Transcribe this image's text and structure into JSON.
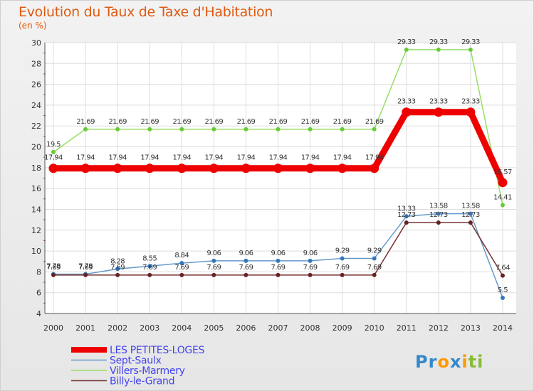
{
  "chart_data": {
    "type": "line",
    "title": "Evolution du Taux de Taxe d'Habitation",
    "ylabel": "(en %)",
    "xlabel": "",
    "ylim": [
      4,
      30
    ],
    "yticks": [
      4,
      6,
      8,
      10,
      12,
      14,
      16,
      18,
      20,
      22,
      24,
      26,
      28,
      30
    ],
    "categories": [
      "2000",
      "2001",
      "2002",
      "2003",
      "2004",
      "2005",
      "2006",
      "2007",
      "2008",
      "2009",
      "2010",
      "2011",
      "2012",
      "2013",
      "2014"
    ],
    "series": [
      {
        "name": "LES PETITES-LOGES",
        "color": "#ee0000",
        "thick": true,
        "values": [
          17.94,
          17.94,
          17.94,
          17.94,
          17.94,
          17.94,
          17.94,
          17.94,
          17.94,
          17.94,
          17.94,
          23.33,
          23.33,
          23.33,
          16.57
        ],
        "labels": [
          "17.94",
          "17.94",
          "17.94",
          "17.94",
          "17.94",
          "17.94",
          "17.94",
          "17.94",
          "17.94",
          "17.94",
          "17.94",
          "23.33",
          "23.33",
          "23.33",
          "16.57"
        ]
      },
      {
        "name": "Sept-Saulx",
        "color": "#6699cc",
        "marker": "#3377bb",
        "values": [
          7.78,
          7.78,
          8.28,
          8.55,
          8.84,
          9.06,
          9.06,
          9.06,
          9.06,
          9.29,
          9.29,
          13.33,
          13.58,
          13.58,
          5.5
        ],
        "labels": [
          "7.78",
          "7.78",
          "8.28",
          "8.55",
          "8.84",
          "9.06",
          "9.06",
          "9.06",
          "9.06",
          "9.29",
          "9.29",
          "13.33",
          "13.58",
          "13.58",
          "5.5"
        ]
      },
      {
        "name": "Villers-Marmery",
        "color": "#99dd66",
        "marker": "#66cc33",
        "values": [
          19.5,
          21.69,
          21.69,
          21.69,
          21.69,
          21.69,
          21.69,
          21.69,
          21.69,
          21.69,
          21.69,
          29.33,
          29.33,
          29.33,
          14.41
        ],
        "labels": [
          "19.5",
          "21.69",
          "21.69",
          "21.69",
          "21.69",
          "21.69",
          "21.69",
          "21.69",
          "21.69",
          "21.69",
          "21.69",
          "29.33",
          "29.33",
          "29.33",
          "14.41"
        ]
      },
      {
        "name": "Billy-le-Grand",
        "color": "#773333",
        "marker": "#662222",
        "values": [
          7.69,
          7.69,
          7.69,
          7.69,
          7.69,
          7.69,
          7.69,
          7.69,
          7.69,
          7.69,
          7.69,
          12.73,
          12.73,
          12.73,
          7.64
        ],
        "labels": [
          "7.69",
          "7.69",
          "7.69",
          "7.69",
          "7.69",
          "7.69",
          "7.69",
          "7.69",
          "7.69",
          "7.69",
          "7.69",
          "12.73",
          "12.73",
          "12.73",
          "7.64"
        ]
      }
    ],
    "legend_position": "bottom-left"
  },
  "branding": {
    "logo_parts": [
      "Pr",
      "o",
      "x",
      "i",
      "ti"
    ],
    "logo_colors": [
      "#3388cc",
      "#ff9900",
      "#3388cc",
      "#ff9900",
      "#88bb33"
    ]
  }
}
